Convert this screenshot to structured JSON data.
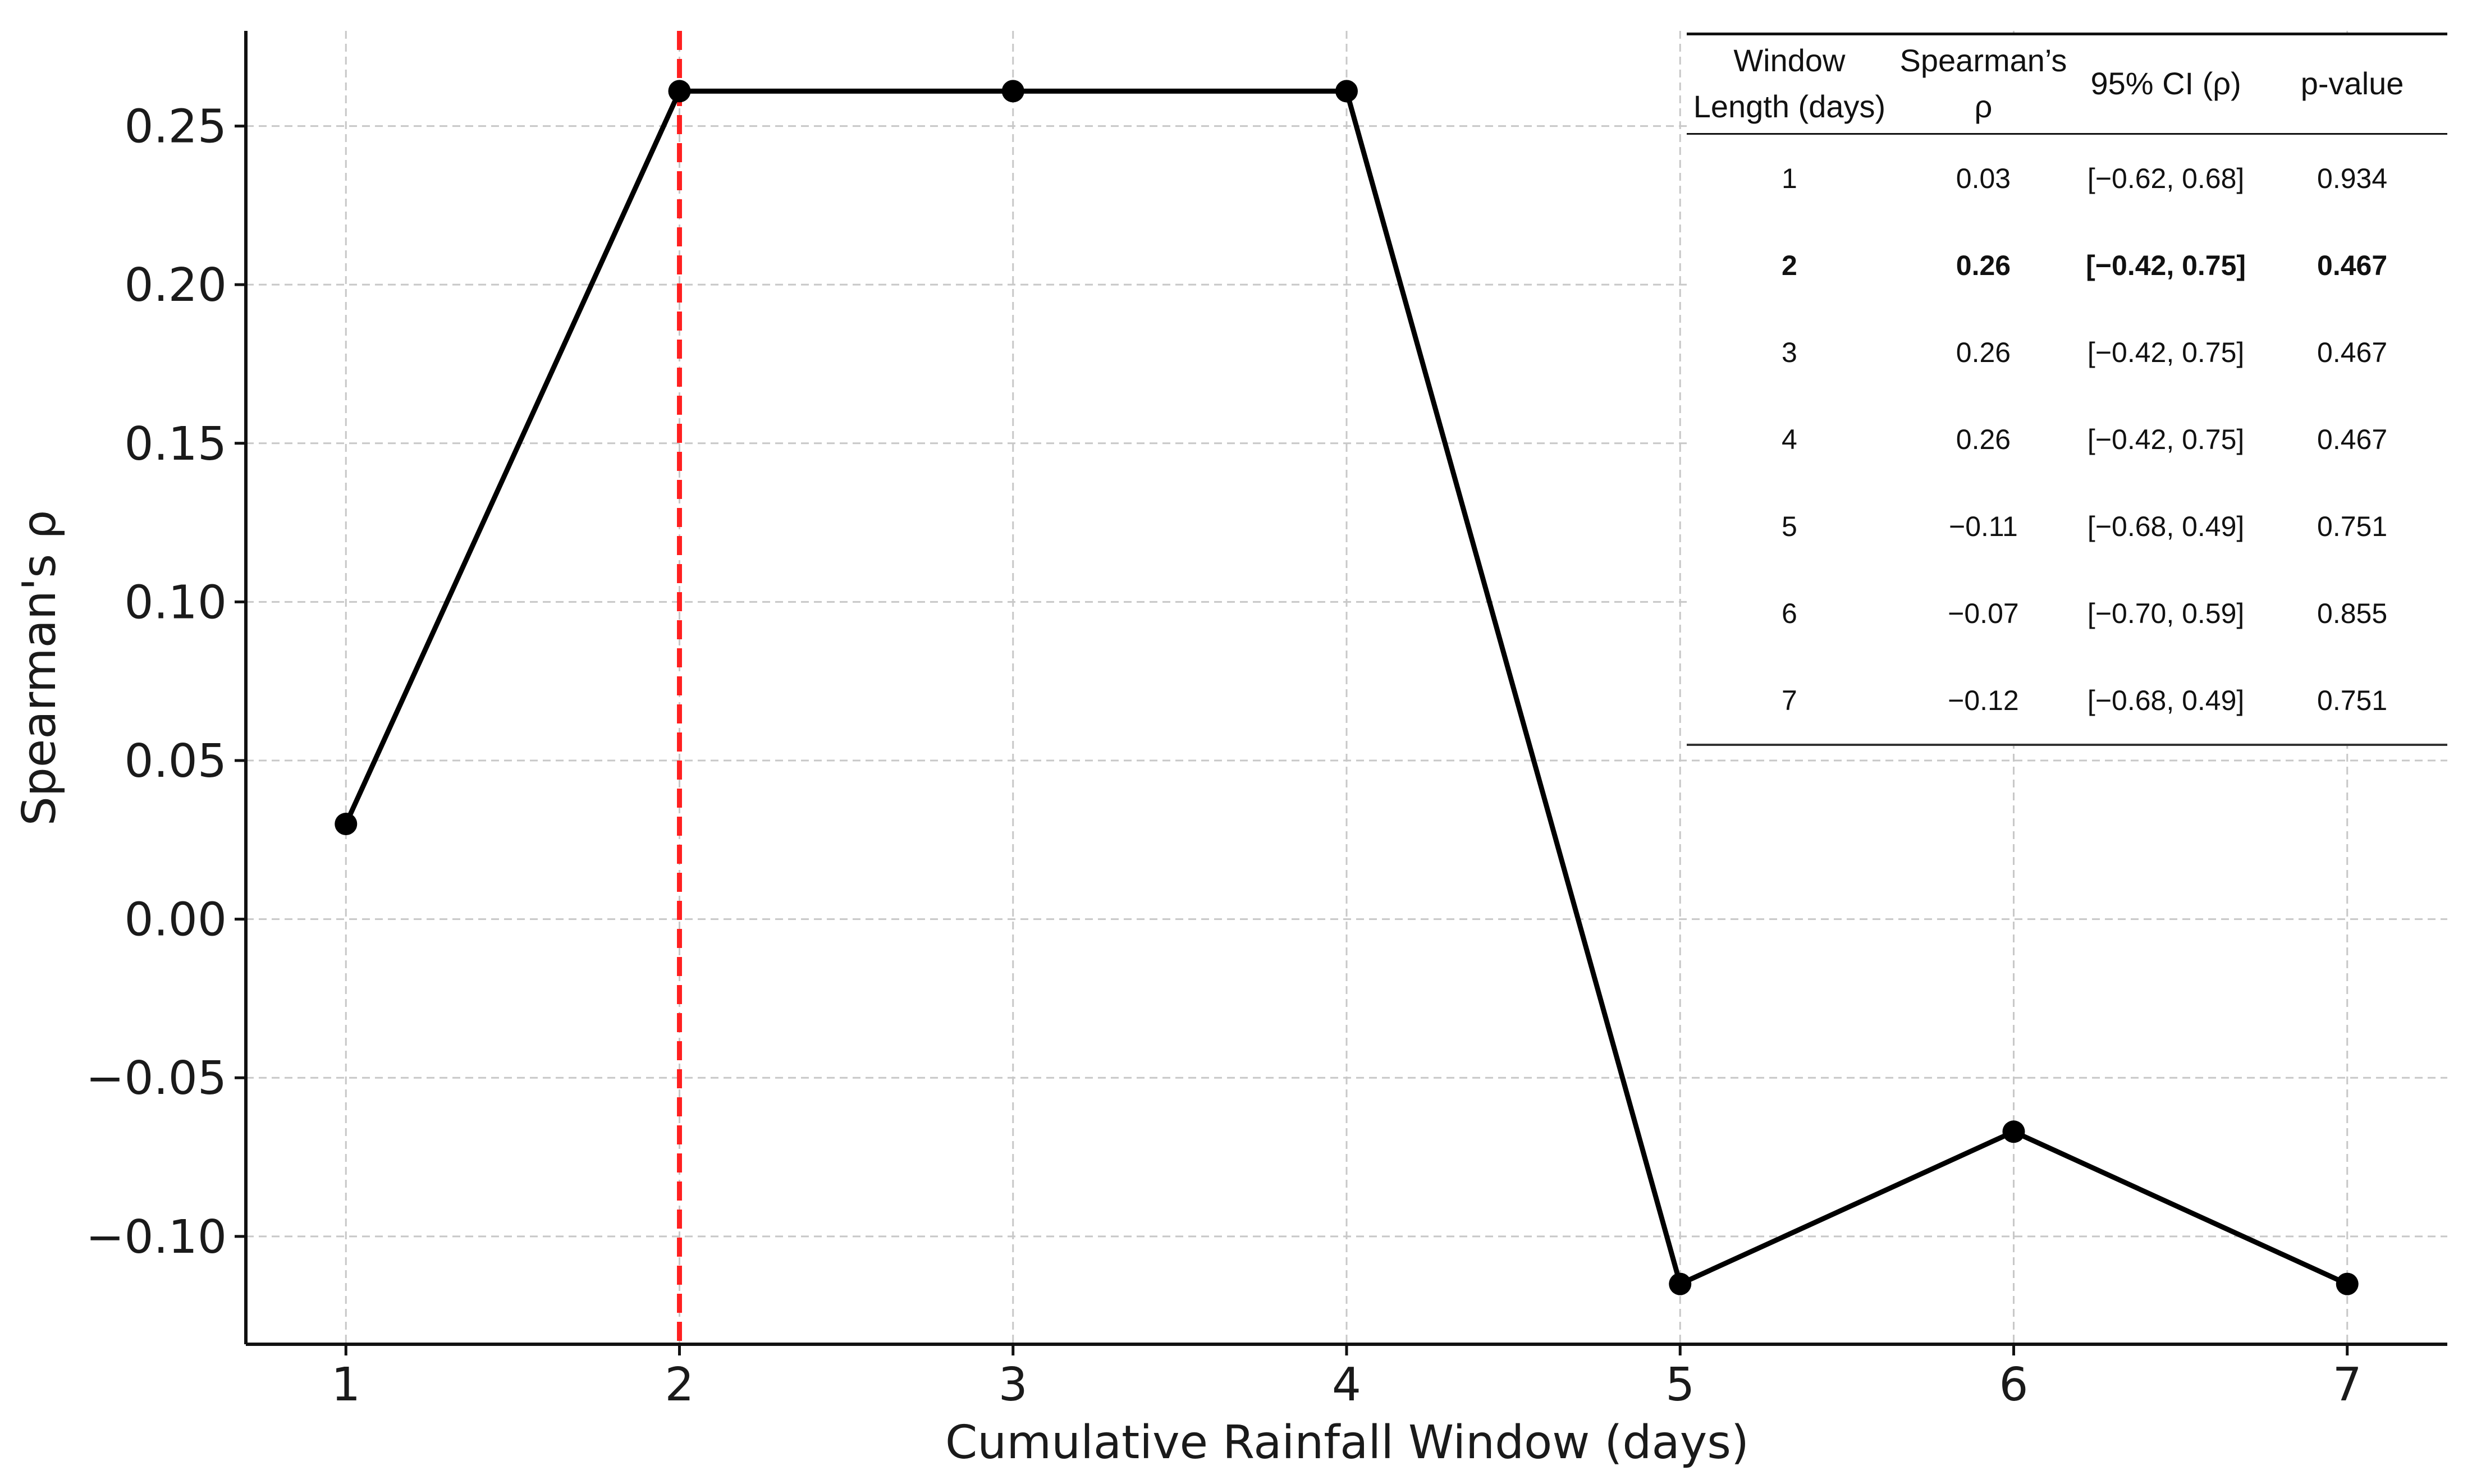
{
  "chart_data": {
    "type": "line",
    "xlabel": "Cumulative Rainfall Window (days)",
    "ylabel": "Spearman's ρ",
    "x": [
      1,
      2,
      3,
      4,
      5,
      6,
      7
    ],
    "series": [
      {
        "values": [
          0.03,
          0.261,
          0.261,
          0.261,
          -0.115,
          -0.067,
          -0.115
        ]
      }
    ],
    "xlim": [
      0.7,
      7.3
    ],
    "ylim": [
      -0.134,
      0.28
    ],
    "xticks": [
      1,
      2,
      3,
      4,
      5,
      6,
      7
    ],
    "yticks": [
      -0.1,
      -0.05,
      0.0,
      0.05,
      0.1,
      0.15,
      0.2,
      0.25
    ],
    "ytick_labels": [
      "−0.10",
      "−0.05",
      "0.00",
      "0.05",
      "0.10",
      "0.15",
      "0.20",
      "0.25"
    ],
    "grid": true,
    "line_color": "#000000",
    "marker_color": "#000000",
    "reference_line": {
      "x": 2,
      "color": "#ff2020",
      "style": "dashed"
    }
  },
  "table": {
    "headers": [
      "Window Length (days)",
      "Spearman’s ρ",
      "95% CI (ρ)",
      "p-value"
    ],
    "highlight_row": 1,
    "rows": [
      [
        "1",
        "0.03",
        "[−0.62, 0.68]",
        "0.934"
      ],
      [
        "2",
        "0.26",
        "[−0.42, 0.75]",
        "0.467"
      ],
      [
        "3",
        "0.26",
        "[−0.42, 0.75]",
        "0.467"
      ],
      [
        "4",
        "0.26",
        "[−0.42, 0.75]",
        "0.467"
      ],
      [
        "5",
        "−0.11",
        "[−0.68, 0.49]",
        "0.751"
      ],
      [
        "6",
        "−0.07",
        "[−0.70, 0.59]",
        "0.855"
      ],
      [
        "7",
        "−0.12",
        "[−0.68, 0.49]",
        "0.751"
      ]
    ]
  }
}
